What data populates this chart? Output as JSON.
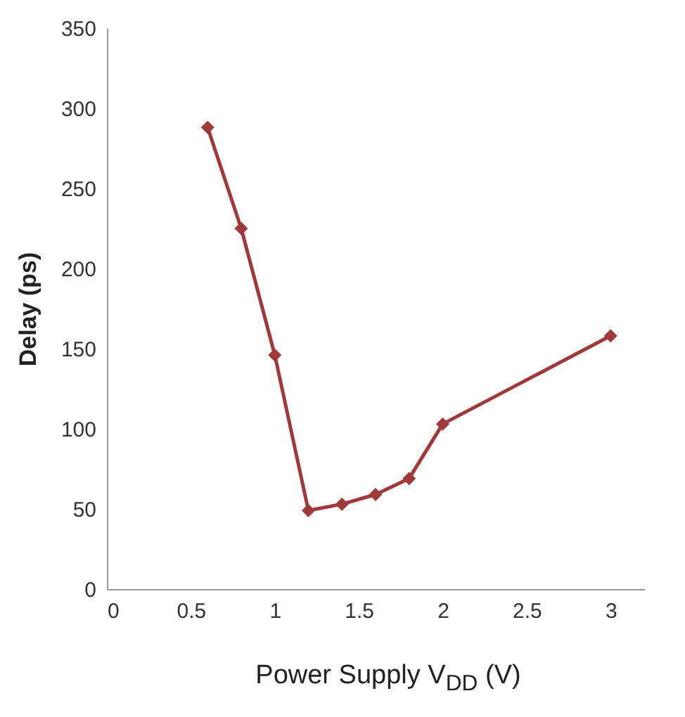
{
  "chart_data": {
    "type": "line",
    "xlabel": "Power Supply V$_{DD}$ (V)",
    "ylabel": "Delay (ps)",
    "x": [
      0.6,
      0.8,
      1.0,
      1.2,
      1.4,
      1.6,
      1.8,
      2.0,
      3.0
    ],
    "series": [
      {
        "color": "#a0393a",
        "values": [
          288,
          225,
          146,
          49,
          53,
          59,
          69,
          103,
          158
        ]
      }
    ],
    "xlim": [
      0,
      3.2
    ],
    "xticks": [
      0,
      0.5,
      1,
      1.5,
      2,
      2.5,
      3
    ],
    "ylim": [
      0,
      350
    ],
    "yticks": [
      0,
      50,
      100,
      150,
      200,
      250,
      300,
      350
    ],
    "grid": false,
    "legend": false,
    "marker": "diamond",
    "line_style": "solid"
  }
}
